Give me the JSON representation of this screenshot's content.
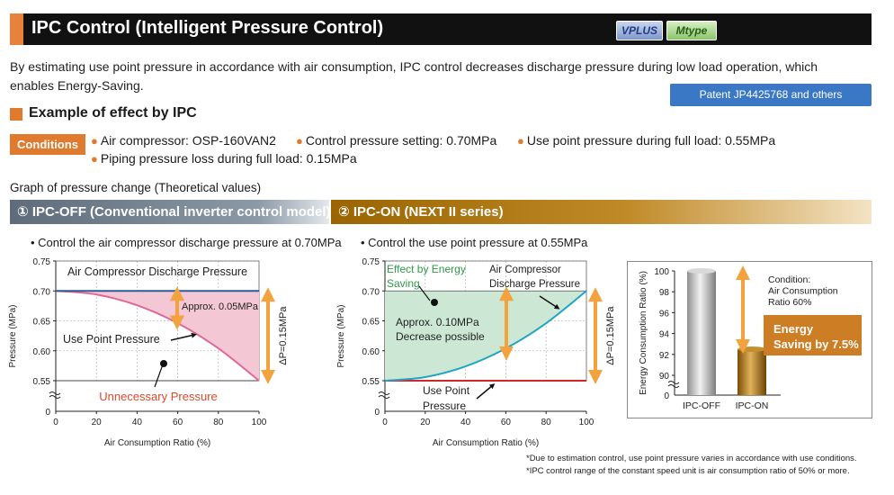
{
  "header": {
    "title": "IPC Control (Intelligent Pressure Control)",
    "badges": {
      "vplus": "VPLUS",
      "mtype": "Mtype"
    }
  },
  "intro": "By estimating use point pressure in accordance with air consumption, IPC control decreases discharge pressure during low load operation, which enables Energy-Saving.",
  "patent": "Patent JP4425768 and others",
  "example_title": "Example of effect by IPC",
  "conditions": {
    "label": "Conditions",
    "items": [
      "Air compressor: OSP-160VAN2",
      "Control pressure setting: 0.70MPa",
      "Use point pressure during full load: 0.55MPa",
      "Piping pressure loss during full load: 0.15MPa"
    ]
  },
  "graph_caption": "Graph of pressure change (Theoretical values)",
  "panel1": {
    "heading": "① IPC-OFF (Conventional inverter control model)",
    "bullet": "• Control the air compressor discharge pressure at 0.70MPa"
  },
  "panel2": {
    "heading": "② IPC-ON (NEXT II series)",
    "bullet": "• Control the use point pressure at 0.55MPa"
  },
  "footnotes": [
    "*Due to estimation control, use point pressure varies in accordance with use conditions.",
    "*IPC control range of the constant speed unit is air consumption ratio of 50% or more."
  ],
  "colors": {
    "discharge_off": "#2b5d9a",
    "use_point_off": "#e0679a",
    "unnecessary_fill": "#f3c7d3",
    "discharge_on": "#20a6c4",
    "use_point_on": "#cc2a2a",
    "saving_fill": "#cce8d4",
    "arrow": "#f4a23e",
    "effect_text": "#2f9a46",
    "unnecessary_text": "#d94a2a"
  },
  "chart_data": [
    {
      "type": "line",
      "title": "IPC-OFF",
      "xlabel": "Air Consumption Ratio (%)",
      "ylabel": "Pressure (MPa)",
      "xlim": [
        0,
        100
      ],
      "ylim": [
        0.55,
        0.75
      ],
      "x_ticks": [
        "0",
        "20",
        "40",
        "60",
        "80",
        "100"
      ],
      "y_ticks": [
        "0.75",
        "0.70",
        "0.65",
        "0.60",
        "0.55"
      ],
      "y_zero_label": "0",
      "series": [
        {
          "name": "Air Compressor Discharge Pressure",
          "x": [
            0,
            100
          ],
          "y": [
            0.7,
            0.7
          ]
        },
        {
          "name": "Use Point Pressure",
          "x": [
            0,
            20,
            40,
            60,
            80,
            100
          ],
          "y": [
            0.7,
            0.694,
            0.676,
            0.646,
            0.604,
            0.55
          ]
        }
      ],
      "annotations": {
        "approx": "Approx. 0.05MPa",
        "delta": "ΔP=0.15MPa",
        "unnecessary": "Unnecessary Pressure",
        "discharge_label": "Air Compressor Discharge Pressure",
        "use_point_label": "Use Point Pressure"
      }
    },
    {
      "type": "line",
      "title": "IPC-ON",
      "xlabel": "Air Consumption Ratio (%)",
      "ylabel": "Pressure (MPa)",
      "xlim": [
        0,
        100
      ],
      "ylim": [
        0.55,
        0.75
      ],
      "x_ticks": [
        "0",
        "20",
        "40",
        "60",
        "80",
        "100"
      ],
      "y_ticks": [
        "0.75",
        "0.70",
        "0.65",
        "0.60",
        "0.55"
      ],
      "y_zero_label": "0",
      "series": [
        {
          "name": "Air Compressor Discharge Pressure",
          "x": [
            0,
            20,
            40,
            60,
            80,
            100
          ],
          "y": [
            0.55,
            0.556,
            0.574,
            0.604,
            0.646,
            0.7
          ]
        },
        {
          "name": "Use Point Pressure",
          "x": [
            0,
            100
          ],
          "y": [
            0.55,
            0.55
          ]
        }
      ],
      "annotations": {
        "effect_label": "Effect by Energy Saving",
        "approx": "Approx. 0.10MPa Decrease possible",
        "delta": "ΔP=0.15MPa",
        "discharge_label": "Air Compressor Discharge Pressure",
        "use_point_label": "Use Point Pressure"
      }
    },
    {
      "type": "bar",
      "title": "Energy Consumption",
      "ylabel": "Energy Consumption Ratio (%)",
      "categories": [
        "IPC-OFF",
        "IPC-ON"
      ],
      "values": [
        100,
        92.5
      ],
      "ylim": [
        90,
        100
      ],
      "y_ticks": [
        "100",
        "98",
        "96",
        "94",
        "92",
        "90"
      ],
      "y_zero_label": "0",
      "annotations": {
        "condition": [
          "Condition:",
          "Air Consumption",
          "Ratio 60%"
        ],
        "saving": [
          "Energy",
          "Saving by 7.5%"
        ]
      }
    }
  ]
}
